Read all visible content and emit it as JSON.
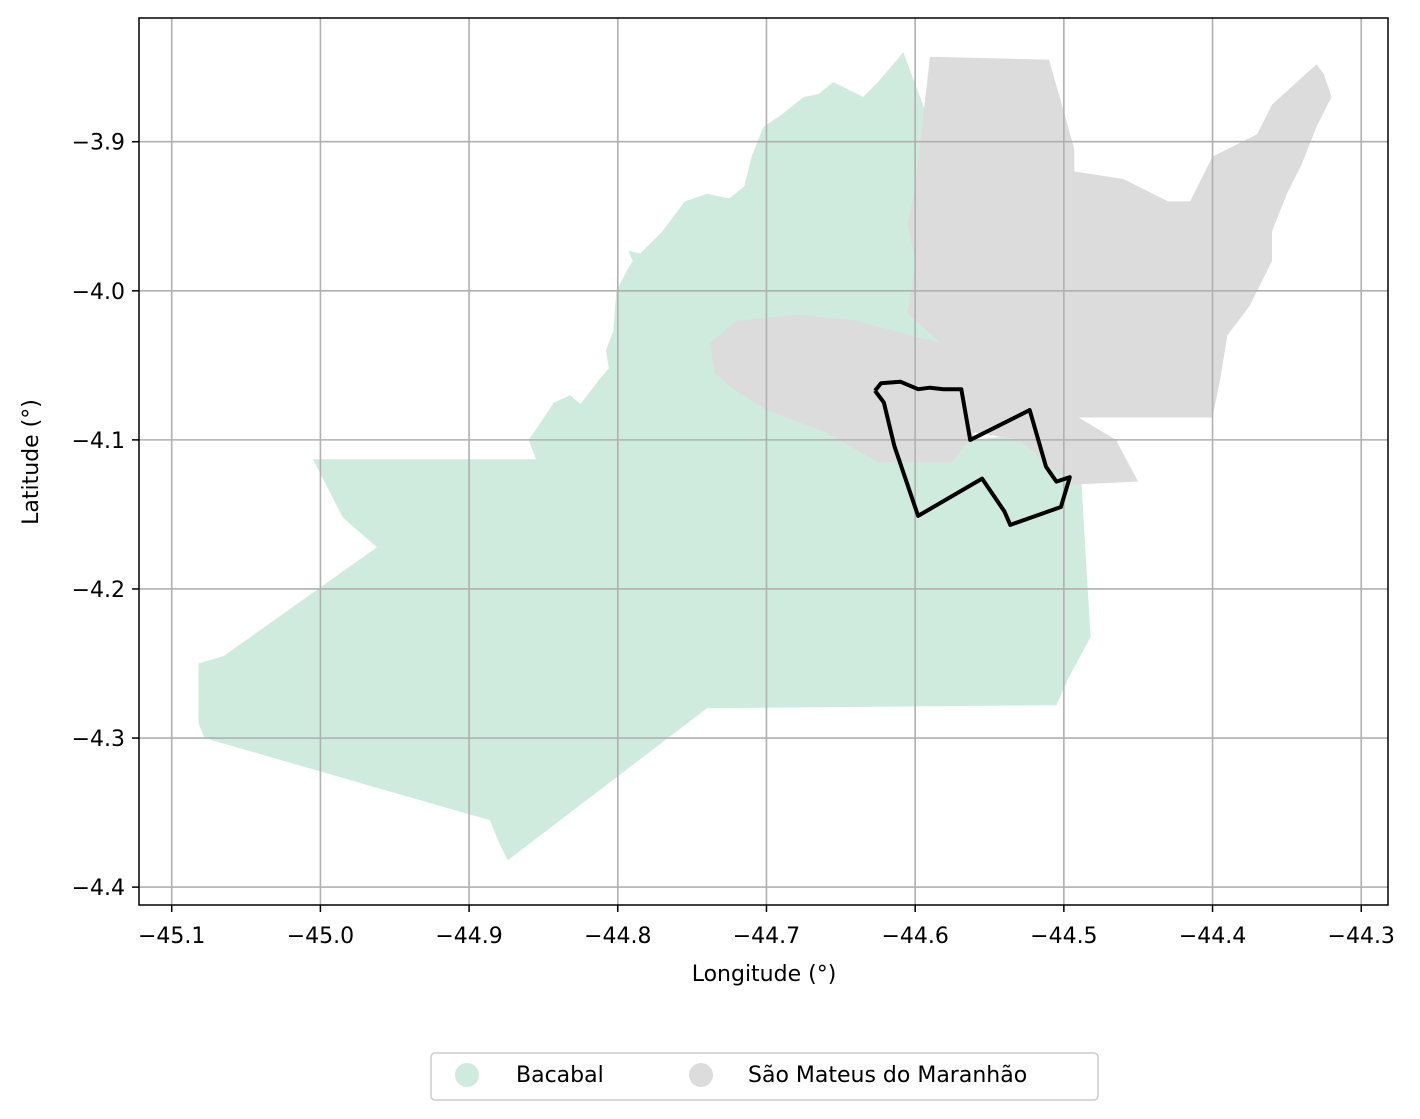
{
  "chart_data": {
    "type": "map",
    "xlabel": "Longitude (°)",
    "ylabel": "Latitude (°)",
    "xlim": [
      -45.122,
      -44.282
    ],
    "ylim": [
      -4.412,
      -3.817
    ],
    "x_ticks": [
      {
        "value": -45.1,
        "label": "−45.1"
      },
      {
        "value": -45.0,
        "label": "−45.0"
      },
      {
        "value": -44.9,
        "label": "−44.9"
      },
      {
        "value": -44.8,
        "label": "−44.8"
      },
      {
        "value": -44.7,
        "label": "−44.7"
      },
      {
        "value": -44.6,
        "label": "−44.6"
      },
      {
        "value": -44.5,
        "label": "−44.5"
      },
      {
        "value": -44.4,
        "label": "−44.4"
      },
      {
        "value": -44.3,
        "label": "−44.3"
      }
    ],
    "y_ticks": [
      {
        "value": -3.9,
        "label": "−3.9"
      },
      {
        "value": -4.0,
        "label": "−4.0"
      },
      {
        "value": -4.1,
        "label": "−4.1"
      },
      {
        "value": -4.2,
        "label": "−4.2"
      },
      {
        "value": -4.3,
        "label": "−4.3"
      },
      {
        "value": -4.4,
        "label": "−4.4"
      }
    ],
    "grid": true,
    "legend_position": "bottom-center",
    "regions": [
      {
        "name": "Bacabal",
        "color": "#cfebde",
        "coords": [
          [
            -45.005,
            -4.113
          ],
          [
            -44.855,
            -4.113
          ],
          [
            -44.86,
            -4.1
          ],
          [
            -44.853,
            -4.09
          ],
          [
            -44.843,
            -4.075
          ],
          [
            -44.832,
            -4.07
          ],
          [
            -44.825,
            -4.076
          ],
          [
            -44.813,
            -4.06
          ],
          [
            -44.806,
            -4.052
          ],
          [
            -44.808,
            -4.04
          ],
          [
            -44.803,
            -4.027
          ],
          [
            -44.801,
            -4.0
          ],
          [
            -44.793,
            -3.985
          ],
          [
            -44.79,
            -3.98
          ],
          [
            -44.793,
            -3.973
          ],
          [
            -44.785,
            -3.975
          ],
          [
            -44.77,
            -3.96
          ],
          [
            -44.755,
            -3.94
          ],
          [
            -44.74,
            -3.935
          ],
          [
            -44.725,
            -3.938
          ],
          [
            -44.715,
            -3.93
          ],
          [
            -44.712,
            -3.918
          ],
          [
            -44.71,
            -3.91
          ],
          [
            -44.702,
            -3.89
          ],
          [
            -44.69,
            -3.882
          ],
          [
            -44.675,
            -3.87
          ],
          [
            -44.665,
            -3.868
          ],
          [
            -44.655,
            -3.86
          ],
          [
            -44.635,
            -3.87
          ],
          [
            -44.625,
            -3.86
          ],
          [
            -44.608,
            -3.84
          ],
          [
            -44.593,
            -3.88
          ],
          [
            -44.59,
            -3.925
          ],
          [
            -44.583,
            -3.96
          ],
          [
            -44.577,
            -4.01
          ],
          [
            -44.575,
            -4.05
          ],
          [
            -44.56,
            -4.1
          ],
          [
            -44.49,
            -4.091
          ],
          [
            -44.487,
            -4.15
          ],
          [
            -44.482,
            -4.232
          ],
          [
            -44.497,
            -4.26
          ],
          [
            -44.505,
            -4.278
          ],
          [
            -44.74,
            -4.28
          ],
          [
            -44.874,
            -4.382
          ],
          [
            -44.88,
            -4.37
          ],
          [
            -44.886,
            -4.355
          ],
          [
            -44.897,
            -4.352
          ],
          [
            -45.078,
            -4.3
          ],
          [
            -45.082,
            -4.29
          ],
          [
            -45.082,
            -4.25
          ],
          [
            -45.065,
            -4.245
          ],
          [
            -44.962,
            -4.172
          ],
          [
            -44.985,
            -4.152
          ],
          [
            -45.005,
            -4.113
          ]
        ]
      },
      {
        "name": "São Mateus do Maranhão",
        "color": "#dcdcdc",
        "coords": [
          [
            -44.59,
            -3.843
          ],
          [
            -44.51,
            -3.845
          ],
          [
            -44.5,
            -3.88
          ],
          [
            -44.493,
            -3.905
          ],
          [
            -44.493,
            -3.92
          ],
          [
            -44.46,
            -3.925
          ],
          [
            -44.43,
            -3.94
          ],
          [
            -44.415,
            -3.94
          ],
          [
            -44.4,
            -3.91
          ],
          [
            -44.37,
            -3.895
          ],
          [
            -44.36,
            -3.875
          ],
          [
            -44.33,
            -3.848
          ],
          [
            -44.325,
            -3.855
          ],
          [
            -44.32,
            -3.87
          ],
          [
            -44.33,
            -3.89
          ],
          [
            -44.34,
            -3.915
          ],
          [
            -44.35,
            -3.935
          ],
          [
            -44.36,
            -3.96
          ],
          [
            -44.36,
            -3.98
          ],
          [
            -44.375,
            -4.01
          ],
          [
            -44.39,
            -4.03
          ],
          [
            -44.395,
            -4.06
          ],
          [
            -44.4,
            -4.085
          ],
          [
            -44.49,
            -4.085
          ],
          [
            -44.465,
            -4.1
          ],
          [
            -44.45,
            -4.128
          ],
          [
            -44.495,
            -4.13
          ],
          [
            -44.53,
            -4.1
          ],
          [
            -44.56,
            -4.095
          ],
          [
            -44.575,
            -4.115
          ],
          [
            -44.625,
            -4.115
          ],
          [
            -44.66,
            -4.095
          ],
          [
            -44.7,
            -4.08
          ],
          [
            -44.722,
            -4.066
          ],
          [
            -44.735,
            -4.055
          ],
          [
            -44.738,
            -4.035
          ],
          [
            -44.72,
            -4.02
          ],
          [
            -44.68,
            -4.016
          ],
          [
            -44.64,
            -4.02
          ],
          [
            -44.583,
            -4.035
          ],
          [
            -44.605,
            -4.015
          ],
          [
            -44.6,
            -3.98
          ],
          [
            -44.605,
            -3.955
          ],
          [
            -44.6,
            -3.93
          ],
          [
            -44.59,
            -3.843
          ]
        ]
      }
    ],
    "outline_coords": [
      [
        -44.627,
        -4.067
      ],
      [
        -44.623,
        -4.062
      ],
      [
        -44.61,
        -4.061
      ],
      [
        -44.598,
        -4.066
      ],
      [
        -44.59,
        -4.065
      ],
      [
        -44.581,
        -4.066
      ],
      [
        -44.569,
        -4.066
      ],
      [
        -44.563,
        -4.1
      ],
      [
        -44.523,
        -4.08
      ],
      [
        -44.512,
        -4.118
      ],
      [
        -44.505,
        -4.128
      ],
      [
        -44.496,
        -4.125
      ],
      [
        -44.502,
        -4.145
      ],
      [
        -44.536,
        -4.157
      ],
      [
        -44.54,
        -4.148
      ],
      [
        -44.555,
        -4.126
      ],
      [
        -44.598,
        -4.151
      ],
      [
        -44.614,
        -4.104
      ],
      [
        -44.621,
        -4.075
      ],
      [
        -44.627,
        -4.067
      ]
    ]
  },
  "legend": {
    "items": [
      {
        "label": "Bacabal",
        "color": "#cfebde"
      },
      {
        "label": "São Mateus do Maranhão",
        "color": "#dcdcdc"
      }
    ]
  }
}
